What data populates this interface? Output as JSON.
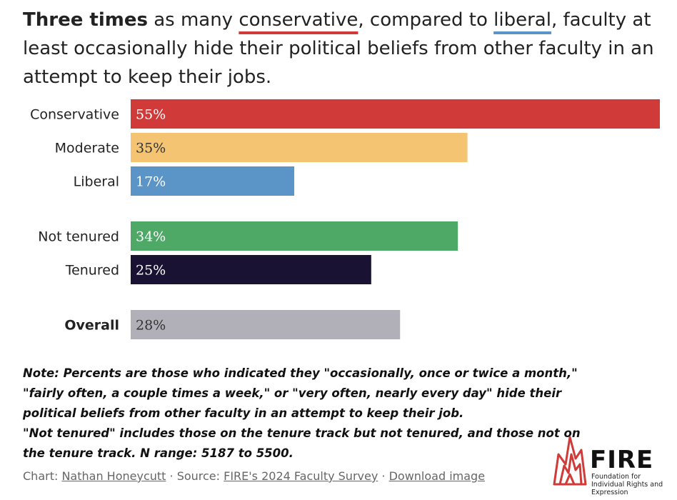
{
  "headline": {
    "bold": "Three times",
    "part1": " as many ",
    "conservative": "conservative",
    "part2": ", compared to ",
    "liberal": "liberal",
    "part3": ", faculty at least occasionally hide their political beliefs from other faculty in an attempt to keep their jobs."
  },
  "chart_data": {
    "type": "bar",
    "orientation": "horizontal",
    "categories": [
      "Conservative",
      "Moderate",
      "Liberal",
      "Not tenured",
      "Tenured",
      "Overall"
    ],
    "values": [
      55,
      35,
      17,
      34,
      25,
      28
    ],
    "value_labels": [
      "55%",
      "35%",
      "17%",
      "34%",
      "25%",
      "28%"
    ],
    "colors": [
      "#d03a38",
      "#f5c472",
      "#5b95c8",
      "#4ea866",
      "#1a1232",
      "#b1b0b8"
    ],
    "label_text_colors": [
      "#ffffff",
      "#333333",
      "#ffffff",
      "#ffffff",
      "#ffffff",
      "#333333"
    ],
    "bold_categories": [
      "Overall"
    ],
    "xlim": [
      0,
      55
    ]
  },
  "note": {
    "lines": [
      "Note: Percents are those who indicated they \"occasionally, once or twice a month,\"",
      "\"fairly often, a couple times a week,\" or \"very often, nearly every day\" hide their",
      "political beliefs from other faculty in an attempt to keep their job.",
      "\"Not tenured\" includes those on the tenure track but not tenured, and those not on",
      "the tenure track. N range: 5187 to 5500."
    ]
  },
  "footer": {
    "chart_prefix": "Chart: ",
    "author": "Nathan Honeycutt",
    "sep1": " · Source: ",
    "source": "FIRE's 2024 Faculty Survey",
    "sep2": " · ",
    "download": "Download image"
  },
  "logo": {
    "name": "FIRE",
    "subtitle": "Foundation for Individual Rights and Expression",
    "accent": "#d03a38"
  }
}
